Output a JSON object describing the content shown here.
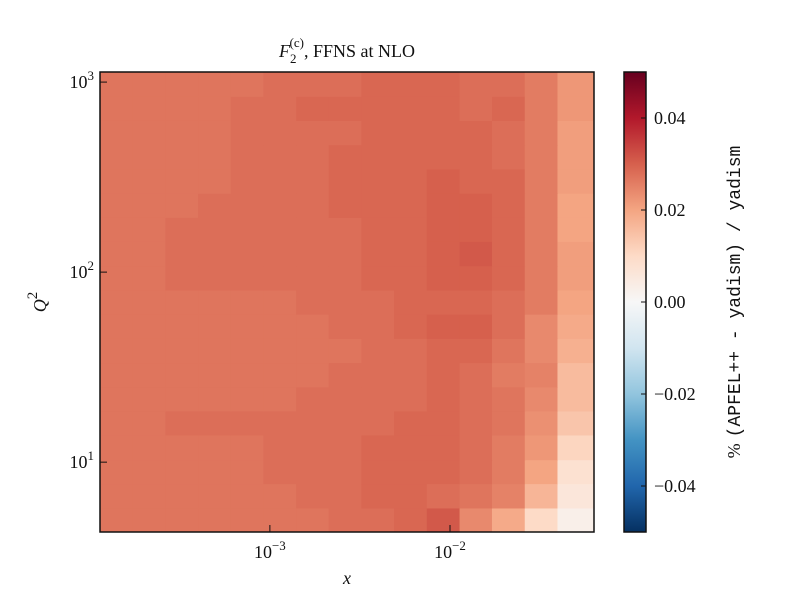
{
  "chart_data": {
    "type": "heatmap",
    "title": {
      "symbol": "F",
      "subscript": "2",
      "superscript": "(c)",
      "text": ", FFNS at NLO"
    },
    "xlabel": "x",
    "ylabel": {
      "symbol": "Q",
      "superscript": "2"
    },
    "colorbar_label": {
      "prefix": "%",
      "text": "(APFEL++ - yadism) / yadism"
    },
    "log_x": true,
    "log_y": true,
    "xlim": [
      0.000114,
      0.063
    ],
    "ylim": [
      4.29,
      1130
    ],
    "xticks": [
      {
        "value": 0.001,
        "label": {
          "base": "10",
          "exponent": "−3"
        }
      },
      {
        "value": 0.01,
        "label": {
          "base": "10",
          "exponent": "−2"
        }
      }
    ],
    "yticks": [
      {
        "value": 10,
        "label": {
          "base": "10",
          "exponent": "1"
        }
      },
      {
        "value": 100,
        "label": {
          "base": "10",
          "exponent": "2"
        }
      },
      {
        "value": 1000,
        "label": {
          "base": "10",
          "exponent": "3"
        }
      }
    ],
    "x_edges": [
      0.000114,
      0.000173,
      0.000263,
      0.000399,
      0.000606,
      0.00092,
      0.0014,
      0.00212,
      0.00322,
      0.00489,
      0.00743,
      0.0113,
      0.0171,
      0.026,
      0.0395,
      0.063
    ],
    "y_edges": [
      4.29,
      5.74,
      7.71,
      10.3,
      13.9,
      18.6,
      24.9,
      33.4,
      44.8,
      60.1,
      80.5,
      108,
      145,
      194,
      260,
      349,
      468,
      628,
      841,
      1130
    ],
    "values": [
      [
        0.027,
        0.027,
        0.027,
        0.027,
        0.027,
        0.027,
        0.027,
        0.028,
        0.028,
        0.029,
        0.031,
        0.024,
        0.019,
        0.01,
        0.003
      ],
      [
        0.027,
        0.027,
        0.027,
        0.027,
        0.027,
        0.027,
        0.028,
        0.028,
        0.029,
        0.029,
        0.028,
        0.027,
        0.025,
        0.017,
        0.006
      ],
      [
        0.027,
        0.027,
        0.027,
        0.027,
        0.027,
        0.028,
        0.028,
        0.028,
        0.029,
        0.029,
        0.029,
        0.028,
        0.026,
        0.02,
        0.008
      ],
      [
        0.027,
        0.027,
        0.027,
        0.027,
        0.027,
        0.028,
        0.028,
        0.028,
        0.029,
        0.029,
        0.029,
        0.028,
        0.026,
        0.022,
        0.011
      ],
      [
        0.027,
        0.027,
        0.028,
        0.028,
        0.028,
        0.028,
        0.028,
        0.028,
        0.028,
        0.029,
        0.029,
        0.028,
        0.027,
        0.023,
        0.014
      ],
      [
        0.027,
        0.027,
        0.027,
        0.027,
        0.027,
        0.027,
        0.028,
        0.028,
        0.028,
        0.028,
        0.029,
        0.028,
        0.027,
        0.024,
        0.016
      ],
      [
        0.027,
        0.027,
        0.027,
        0.027,
        0.027,
        0.027,
        0.027,
        0.028,
        0.028,
        0.028,
        0.029,
        0.028,
        0.026,
        0.025,
        0.016
      ],
      [
        0.027,
        0.027,
        0.027,
        0.027,
        0.027,
        0.027,
        0.027,
        0.027,
        0.028,
        0.028,
        0.029,
        0.029,
        0.027,
        0.024,
        0.018
      ],
      [
        0.027,
        0.027,
        0.027,
        0.027,
        0.027,
        0.027,
        0.027,
        0.028,
        0.028,
        0.029,
        0.03,
        0.03,
        0.028,
        0.024,
        0.019
      ],
      [
        0.027,
        0.027,
        0.027,
        0.027,
        0.027,
        0.027,
        0.028,
        0.028,
        0.028,
        0.029,
        0.029,
        0.029,
        0.028,
        0.026,
        0.02
      ],
      [
        0.027,
        0.027,
        0.028,
        0.028,
        0.028,
        0.028,
        0.028,
        0.028,
        0.029,
        0.029,
        0.03,
        0.03,
        0.029,
        0.026,
        0.021
      ],
      [
        0.027,
        0.027,
        0.028,
        0.028,
        0.028,
        0.028,
        0.028,
        0.028,
        0.029,
        0.029,
        0.03,
        0.031,
        0.029,
        0.026,
        0.021
      ],
      [
        0.027,
        0.027,
        0.028,
        0.028,
        0.028,
        0.028,
        0.028,
        0.028,
        0.029,
        0.029,
        0.03,
        0.03,
        0.029,
        0.026,
        0.02
      ],
      [
        0.027,
        0.027,
        0.027,
        0.028,
        0.028,
        0.028,
        0.028,
        0.029,
        0.029,
        0.029,
        0.03,
        0.03,
        0.029,
        0.026,
        0.02
      ],
      [
        0.027,
        0.027,
        0.027,
        0.027,
        0.028,
        0.028,
        0.028,
        0.029,
        0.029,
        0.029,
        0.03,
        0.029,
        0.029,
        0.026,
        0.021
      ],
      [
        0.027,
        0.027,
        0.027,
        0.027,
        0.028,
        0.028,
        0.028,
        0.029,
        0.029,
        0.029,
        0.029,
        0.029,
        0.028,
        0.026,
        0.021
      ],
      [
        0.027,
        0.027,
        0.027,
        0.027,
        0.028,
        0.028,
        0.028,
        0.028,
        0.029,
        0.029,
        0.029,
        0.029,
        0.028,
        0.026,
        0.021
      ],
      [
        0.027,
        0.027,
        0.027,
        0.027,
        0.028,
        0.028,
        0.029,
        0.029,
        0.029,
        0.029,
        0.029,
        0.028,
        0.029,
        0.026,
        0.022
      ],
      [
        0.027,
        0.027,
        0.027,
        0.027,
        0.027,
        0.028,
        0.028,
        0.028,
        0.029,
        0.029,
        0.029,
        0.028,
        0.028,
        0.026,
        0.022
      ]
    ],
    "zlim": [
      -0.05,
      0.05
    ],
    "colorbar_ticks": [
      {
        "value": -0.04,
        "label": "−0.04"
      },
      {
        "value": -0.02,
        "label": "−0.02"
      },
      {
        "value": 0,
        "label": "0.00"
      },
      0.02,
      0.04
    ],
    "colorscale": [
      "#053061",
      "#2166ac",
      "#4393c3",
      "#92c5de",
      "#d1e5f0",
      "#f7f7f7",
      "#fddbc7",
      "#f4a582",
      "#d6604d",
      "#b2182b",
      "#67001f"
    ]
  }
}
